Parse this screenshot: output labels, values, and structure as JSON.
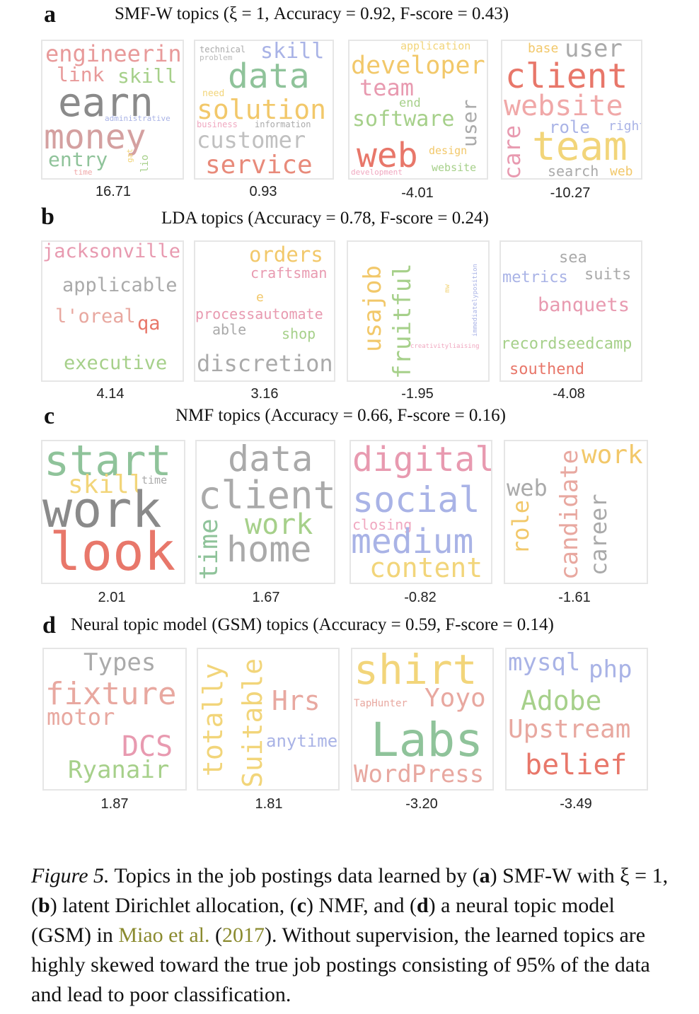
{
  "panels": [
    {
      "letter": "a",
      "title": "SMF-W topics (ξ = 1, Accuracy = 0.92, F-score = 0.43)",
      "scores": [
        "16.71",
        "0.93",
        "-4.01",
        "-10.27"
      ],
      "clouds": [
        [
          {
            "t": "engineering",
            "c": "#e89a9a"
          },
          {
            "t": "link",
            "c": "#e89a9a"
          },
          {
            "t": "skill",
            "c": "#a6d08a"
          },
          {
            "t": "earn",
            "c": "#8a8a8a"
          },
          {
            "t": "administrative",
            "c": "#a9b3e6"
          },
          {
            "t": "money",
            "c": "#d4a0a0"
          },
          {
            "t": "entry",
            "c": "#8fc39a"
          },
          {
            "t": "time",
            "c": "#f0a8a8"
          },
          {
            "t": "gat",
            "c": "#f2d57a"
          },
          {
            "t": "lio",
            "c": "#a6d08a"
          }
        ],
        [
          {
            "t": "technical",
            "c": "#aaaaaa"
          },
          {
            "t": "problem",
            "c": "#bbbbbb"
          },
          {
            "t": "skill",
            "c": "#a9b3e6"
          },
          {
            "t": "data",
            "c": "#8fc39a"
          },
          {
            "t": "need",
            "c": "#f2d57a"
          },
          {
            "t": "solution",
            "c": "#f2c86a"
          },
          {
            "t": "business",
            "c": "#f0a8c0"
          },
          {
            "t": "information",
            "c": "#aaaaaa"
          },
          {
            "t": "customer",
            "c": "#c0c0c0"
          },
          {
            "t": "service",
            "c": "#e88a7a"
          }
        ],
        [
          {
            "t": "application",
            "c": "#f2d57a"
          },
          {
            "t": "developer",
            "c": "#f2c86a"
          },
          {
            "t": "team",
            "c": "#e89ab0"
          },
          {
            "t": "end",
            "c": "#a6d08a"
          },
          {
            "t": "software",
            "c": "#a6d08a"
          },
          {
            "t": "user",
            "c": "#aaaaaa"
          },
          {
            "t": "web",
            "c": "#e8776a"
          },
          {
            "t": "design",
            "c": "#f2c86a"
          },
          {
            "t": "development",
            "c": "#f0a8c0"
          },
          {
            "t": "website",
            "c": "#a6d08a"
          }
        ],
        [
          {
            "t": "base",
            "c": "#f2c86a"
          },
          {
            "t": "user",
            "c": "#aaaaaa"
          },
          {
            "t": "client",
            "c": "#e8776a"
          },
          {
            "t": "website",
            "c": "#f0a8a8"
          },
          {
            "t": "care",
            "c": "#e89ab0"
          },
          {
            "t": "role",
            "c": "#a9b3e6"
          },
          {
            "t": "right",
            "c": "#a9b3e6"
          },
          {
            "t": "team",
            "c": "#f2d57a"
          },
          {
            "t": "search",
            "c": "#aaaaaa"
          },
          {
            "t": "web",
            "c": "#f2c86a"
          }
        ]
      ]
    },
    {
      "letter": "b",
      "title": "LDA topics (Accuracy = 0.78, F-score = 0.24)",
      "scores": [
        "4.14",
        "3.16",
        "-1.95",
        "-4.08"
      ],
      "clouds": [
        [
          {
            "t": "jacksonville",
            "c": "#e89ab0"
          },
          {
            "t": "applicable",
            "c": "#aaaaaa"
          },
          {
            "t": "l'oreal",
            "c": "#e8a8a0"
          },
          {
            "t": "qa",
            "c": "#e8776a"
          },
          {
            "t": "executive",
            "c": "#a6d08a"
          }
        ],
        [
          {
            "t": "orders",
            "c": "#f2c86a"
          },
          {
            "t": "craftsman",
            "c": "#e89ab0"
          },
          {
            "t": "e",
            "c": "#f2c86a"
          },
          {
            "t": "processautomate",
            "c": "#e89ab0"
          },
          {
            "t": "able",
            "c": "#aaaaaa"
          },
          {
            "t": "shop",
            "c": "#a6d08a"
          },
          {
            "t": "discretion",
            "c": "#aaaaaa"
          }
        ],
        [
          {
            "t": "usajob",
            "c": "#f2c86a"
          },
          {
            "t": "fruitful",
            "c": "#a6d08a"
          },
          {
            "t": "mw",
            "c": "#f2d57a"
          },
          {
            "t": "immediatelyposition",
            "c": "#a9b3e6"
          },
          {
            "t": "creativityliaising",
            "c": "#f0a8c0"
          }
        ],
        [
          {
            "t": "sea",
            "c": "#aaaaaa"
          },
          {
            "t": "metrics",
            "c": "#a9b3e6"
          },
          {
            "t": "suits",
            "c": "#aaaaaa"
          },
          {
            "t": "banquets",
            "c": "#e89ab0"
          },
          {
            "t": "recordseedcamp",
            "c": "#a6d08a"
          },
          {
            "t": "southend",
            "c": "#e8776a"
          }
        ]
      ]
    },
    {
      "letter": "c",
      "title": "NMF topics (Accuracy = 0.66, F-score = 0.16)",
      "scores": [
        "2.01",
        "1.67",
        "-0.82",
        "-1.61"
      ],
      "clouds": [
        [
          {
            "t": "start",
            "c": "#8fc39a"
          },
          {
            "t": "skill",
            "c": "#f2d57a"
          },
          {
            "t": "time",
            "c": "#aaaaaa"
          },
          {
            "t": "work",
            "c": "#8a8a8a"
          },
          {
            "t": "look",
            "c": "#e8776a"
          }
        ],
        [
          {
            "t": "data",
            "c": "#aaaaaa"
          },
          {
            "t": "client",
            "c": "#aaaaaa"
          },
          {
            "t": "time",
            "c": "#8fc39a"
          },
          {
            "t": "work",
            "c": "#a6d08a"
          },
          {
            "t": "home",
            "c": "#aaaaaa"
          }
        ],
        [
          {
            "t": "digital",
            "c": "#e89ab0"
          },
          {
            "t": "social",
            "c": "#a9b3e6"
          },
          {
            "t": "closing",
            "c": "#f0a8c0"
          },
          {
            "t": "medium",
            "c": "#a9b3e6"
          },
          {
            "t": "content",
            "c": "#f2d57a"
          }
        ],
        [
          {
            "t": "web",
            "c": "#aaaaaa"
          },
          {
            "t": "work",
            "c": "#f2c86a"
          },
          {
            "t": "role",
            "c": "#f2c86a"
          },
          {
            "t": "candidate",
            "c": "#e8a8a0"
          },
          {
            "t": "career",
            "c": "#aaaaaa"
          }
        ]
      ]
    },
    {
      "letter": "d",
      "title": "Neural topic model (GSM) topics (Accuracy = 0.59, F-score = 0.14)",
      "scores": [
        "1.87",
        "1.81",
        "-3.20",
        "-3.49"
      ],
      "clouds": [
        [
          {
            "t": "Types",
            "c": "#aaaaaa"
          },
          {
            "t": "fixture",
            "c": "#e8a8a0"
          },
          {
            "t": "motor",
            "c": "#e8a8a0"
          },
          {
            "t": "DCS",
            "c": "#e89ab0"
          },
          {
            "t": "Ryanair",
            "c": "#a6d08a"
          }
        ],
        [
          {
            "t": "totally",
            "c": "#f2d57a"
          },
          {
            "t": "Suitable",
            "c": "#f2d57a"
          },
          {
            "t": "Hrs",
            "c": "#e8a8a0"
          },
          {
            "t": "anytime",
            "c": "#a9b3e6"
          }
        ],
        [
          {
            "t": "shirt",
            "c": "#f2d57a"
          },
          {
            "t": "TapHunter",
            "c": "#e8a8a0"
          },
          {
            "t": "Yoyo",
            "c": "#e8a8a0"
          },
          {
            "t": "Labs",
            "c": "#8fc39a"
          },
          {
            "t": "WordPress",
            "c": "#e8a8a0"
          }
        ],
        [
          {
            "t": "mysql",
            "c": "#a9b3e6"
          },
          {
            "t": "php",
            "c": "#a9b3e6"
          },
          {
            "t": "Adobe",
            "c": "#a6d08a"
          },
          {
            "t": "Upstream",
            "c": "#e8a8a0"
          },
          {
            "t": "belief",
            "c": "#e8776a"
          }
        ]
      ]
    }
  ],
  "caption": {
    "figlabel": "Figure 5.",
    "p1": " Topics in the job postings data learned by (",
    "a": "a",
    "p2": ") SMF-W with ξ = 1, (",
    "b": "b",
    "p3": ") latent Dirichlet allocation, (",
    "c": "c",
    "p4": ") NMF, and (",
    "d": "d",
    "p5": ") a neural topic model (GSM) in ",
    "cite_authors": "Miao et al.",
    "cite_open": " (",
    "cite_year": "2017",
    "cite_close": ").",
    "p6": " Without supervision, the learned topics are highly skewed toward the true job postings consisting of 95% of the data and lead to poor classification."
  }
}
